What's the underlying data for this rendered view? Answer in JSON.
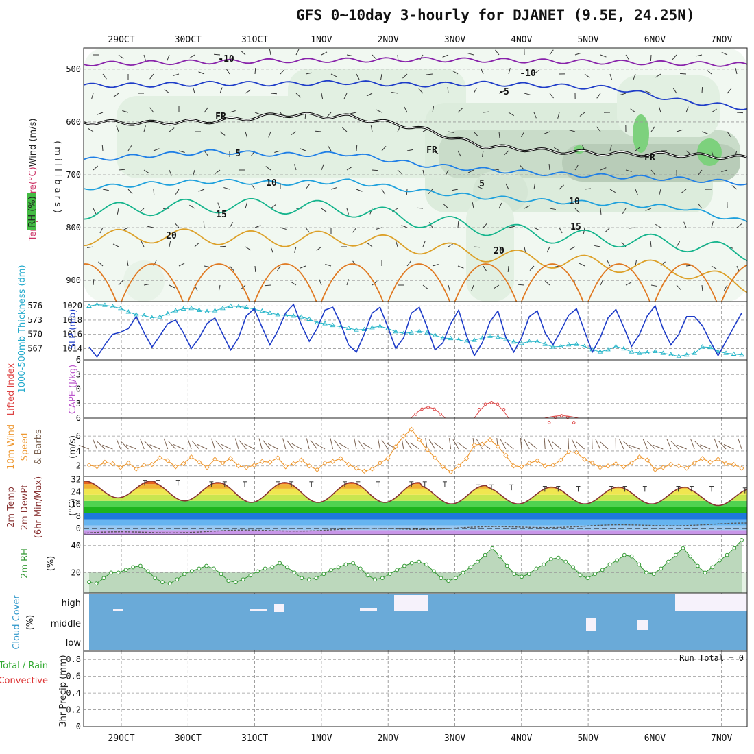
{
  "title": "GFS 0~10day 3-hourly for DJANET (9.5E, 24.25N)",
  "run_total": "Run Total = 0",
  "dates": [
    "29OCT",
    "30OCT",
    "31OCT",
    "1NOV",
    "2NOV",
    "3NOV",
    "4NOV",
    "5NOV",
    "6NOV",
    "7NOV"
  ],
  "chart_data": [
    {
      "id": "upper_air",
      "type": "heatmap",
      "ylabel_parts": [
        {
          "text": "Wind (m/s)",
          "color": "#222222"
        },
        {
          "text": "(°C)",
          "color": "#cc3366"
        },
        {
          "text": "Temperature",
          "color": "#cc3366"
        }
      ],
      "ylabel2": "(millibars)",
      "rh_label": "RH (%)",
      "yticks": [
        500,
        600,
        700,
        800,
        900
      ],
      "ylim": [
        460,
        940
      ],
      "isotherms": [
        {
          "level": -10,
          "label": "-10",
          "color": "#8822aa",
          "p": [
            490,
            488,
            486,
            484,
            483,
            482,
            483,
            485,
            487,
            489,
            492
          ]
        },
        {
          "level": -5,
          "label": "-5",
          "color": "#1e3cc8",
          "p": [
            531,
            530,
            527,
            528,
            525,
            530,
            527,
            531,
            536,
            560,
            574
          ]
        },
        {
          "level": 0,
          "label": "FR",
          "color": "#111111",
          "p": [
            600,
            602,
            598,
            586,
            590,
            610,
            645,
            655,
            660,
            662,
            668
          ]
        },
        {
          "level": 5,
          "label": "5",
          "color": "#1e7ee6",
          "p": [
            672,
            663,
            656,
            662,
            660,
            680,
            690,
            698,
            703,
            708,
            716
          ]
        },
        {
          "level": 10,
          "label": "10",
          "color": "#1ea0dc",
          "p": [
            725,
            717,
            712,
            716,
            712,
            730,
            742,
            750,
            755,
            762,
            790
          ]
        },
        {
          "level": 15,
          "label": "15",
          "color": "#14b48c",
          "p": [
            770,
            763,
            758,
            760,
            765,
            785,
            800,
            815,
            822,
            830,
            850
          ]
        },
        {
          "level": 20,
          "label": "20",
          "color": "#dca028",
          "p": [
            820,
            815,
            818,
            822,
            820,
            835,
            850,
            862,
            870,
            880,
            910
          ]
        }
      ]
    },
    {
      "id": "slp_thickness",
      "type": "line",
      "ylabel_left": "1000-500mb Thickness (dm)",
      "ylabel_right": "SLP (mb)",
      "yticks_left": [
        576,
        573,
        570,
        567
      ],
      "yticks_right": [
        1020,
        1018,
        1016,
        1014
      ],
      "series": [
        {
          "name": "SLP (mb)",
          "color": "#1e3cc8",
          "values": [
            1014.2,
            1012.8,
            1014.5,
            1016.0,
            1016.3,
            1016.8,
            1018.5,
            1016.2,
            1014.2,
            1015.8,
            1017.5,
            1018.0,
            1016.2,
            1014.0,
            1015.5,
            1017.5,
            1018.3,
            1016.0,
            1013.8,
            1015.5,
            1018.6,
            1019.6,
            1017.0,
            1014.5,
            1016.5,
            1019.0,
            1020.2,
            1017.3,
            1015.0,
            1016.8,
            1019.4,
            1019.8,
            1017.5,
            1014.5,
            1013.5,
            1016.0,
            1019.0,
            1019.8,
            1017.0,
            1014.0,
            1015.5,
            1019.0,
            1019.8,
            1017.0,
            1013.8,
            1014.8,
            1017.5,
            1019.4,
            1015.8,
            1013.0,
            1014.8,
            1017.8,
            1019.3,
            1015.6,
            1013.5,
            1015.5,
            1018.5,
            1019.3,
            1016.2,
            1014.5,
            1016.5,
            1018.7,
            1019.6,
            1016.5,
            1013.5,
            1015.5,
            1018.3,
            1019.5,
            1017.0,
            1014.3,
            1016.0,
            1018.6,
            1020.0,
            1016.8,
            1014.5,
            1016.0,
            1018.5,
            1018.5,
            1017.2,
            1015.0,
            1013.0,
            1015.0,
            1017.0,
            1019.0
          ]
        },
        {
          "name": "1000-500mb Thickness (dm)",
          "color": "#22b4c8",
          "values": [
            576.5,
            576.8,
            576.7,
            576.4,
            576.0,
            575.2,
            574.6,
            574.4,
            573.9,
            574.1,
            574.8,
            575.5,
            575.9,
            576.0,
            575.6,
            575.3,
            575.5,
            576.0,
            576.5,
            576.4,
            576.2,
            575.8,
            575.4,
            575.0,
            574.6,
            574.4,
            574.3,
            574.1,
            573.6,
            572.8,
            572.6,
            572.2,
            571.9,
            571.6,
            571.2,
            571.3,
            571.7,
            572.0,
            571.5,
            570.8,
            570.4,
            570.6,
            570.9,
            570.6,
            570.0,
            569.4,
            569.3,
            569.0,
            568.6,
            568.9,
            569.4,
            569.8,
            569.6,
            569.1,
            568.5,
            568.2,
            568.6,
            568.6,
            568.0,
            567.4,
            567.5,
            567.9,
            568.0,
            567.5,
            566.8,
            566.3,
            566.8,
            567.5,
            567.0,
            566.3,
            566.0,
            566.1,
            566.4,
            566.0,
            565.7,
            565.3,
            565.6,
            566.0,
            567.4,
            567.3,
            566.4,
            566.0,
            565.8,
            565.6
          ]
        }
      ]
    },
    {
      "id": "lifted_index",
      "type": "line",
      "ylabel_a": "Lifted Index",
      "ylabel_b": "CAPE (J/kg)",
      "yticks": [
        "-6",
        "-3",
        "0",
        "3",
        "6"
      ],
      "ylim": [
        6,
        -6
      ],
      "series": [
        {
          "name": "Lifted Index",
          "color": "#dd4444",
          "peaks": [
            {
              "day": 4.6,
              "value": 3.8
            },
            {
              "day": 5.55,
              "value": 2.8
            },
            {
              "day": 6.6,
              "value": 5.5
            }
          ]
        }
      ]
    },
    {
      "id": "wind10m",
      "type": "line",
      "ylabel_a": "10m Wind",
      "ylabel_b": "Speed",
      "ylabel_c": "& Barbs",
      "units": "(m/s)",
      "yticks": [
        2,
        4,
        6
      ],
      "series": [
        {
          "name": "10m Wind Speed",
          "color": "#ee9933",
          "values": [
            2.1,
            1.9,
            2.5,
            2.3,
            1.8,
            2.4,
            1.6,
            2.1,
            2.2,
            3.1,
            2.7,
            1.9,
            2.3,
            3.2,
            2.5,
            1.8,
            2.9,
            2.4,
            3.0,
            2.0,
            1.8,
            2.1,
            2.6,
            2.5,
            3.1,
            1.9,
            2.3,
            2.8,
            2.0,
            1.5,
            2.4,
            2.6,
            3.0,
            2.2,
            1.7,
            1.3,
            1.6,
            2.4,
            3.0,
            4.6,
            6.0,
            6.9,
            5.5,
            4.2,
            3.1,
            1.9,
            1.2,
            2.0,
            3.0,
            4.8,
            4.9,
            5.5,
            4.6,
            3.4,
            2.0,
            1.9,
            2.4,
            2.7,
            2.0,
            2.1,
            2.8,
            3.9,
            3.8,
            2.9,
            2.4,
            1.8,
            2.0,
            2.3,
            1.9,
            2.4,
            3.2,
            2.8,
            1.5,
            1.8,
            2.2,
            2.0,
            1.7,
            2.4,
            3.0,
            2.5,
            2.9,
            2.3,
            2.2,
            1.7
          ]
        }
      ]
    },
    {
      "id": "temp2m",
      "type": "area",
      "ylabel_a": "2m Temp",
      "ylabel_b": "2m DewPt",
      "ylabel_c": "(6hr Min/Max)",
      "units": "(°C)",
      "yticks": [
        0,
        8,
        16,
        24,
        32
      ],
      "ylim": [
        -4,
        34
      ],
      "series": [
        {
          "name": "2m Temp",
          "color": "#883333",
          "maxima": [
            31,
            30,
            30,
            30,
            30,
            28,
            27,
            27,
            27,
            26
          ],
          "minima": [
            20,
            18,
            17,
            17,
            17,
            16,
            16,
            16,
            16,
            15
          ]
        },
        {
          "name": "2m DewPt",
          "color": "#555555",
          "values_start": -3,
          "values_end": 3
        }
      ]
    },
    {
      "id": "rh2m",
      "type": "line",
      "ylabel": "2m RH",
      "units": "(%)",
      "yticks": [
        20,
        40
      ],
      "ylim": [
        5,
        48
      ],
      "series": [
        {
          "name": "2m RH",
          "color": "#339933",
          "values": [
            13,
            12,
            16,
            20,
            20,
            22,
            24,
            25,
            21,
            16,
            13,
            12,
            15,
            19,
            21,
            23,
            25,
            23,
            19,
            14,
            13,
            15,
            18,
            21,
            23,
            24,
            27,
            24,
            20,
            16,
            15,
            16,
            19,
            22,
            24,
            26,
            27,
            23,
            18,
            15,
            16,
            19,
            22,
            25,
            27,
            28,
            26,
            21,
            16,
            14,
            16,
            20,
            24,
            28,
            33,
            38,
            32,
            25,
            19,
            17,
            19,
            23,
            26,
            30,
            31,
            28,
            24,
            18,
            16,
            19,
            22,
            26,
            29,
            33,
            32,
            26,
            20,
            19,
            23,
            28,
            33,
            38,
            32,
            25,
            20,
            24,
            29,
            33,
            38,
            44
          ]
        }
      ]
    },
    {
      "id": "cloud",
      "type": "bar",
      "ylabel_a": "Cloud Cover",
      "ylabel_b": "(%)",
      "yticks": [
        "high",
        "middle",
        "low"
      ]
    },
    {
      "id": "precip",
      "type": "bar",
      "ylabel_a": "Total / Rain",
      "ylabel_b": "Convective",
      "ylabel_c": "3hr Precip (mm)",
      "yticks": [
        "0",
        "0.2",
        "0.4",
        "0.6",
        "0.8"
      ],
      "ylim": [
        0,
        0.9
      ],
      "values": []
    }
  ]
}
